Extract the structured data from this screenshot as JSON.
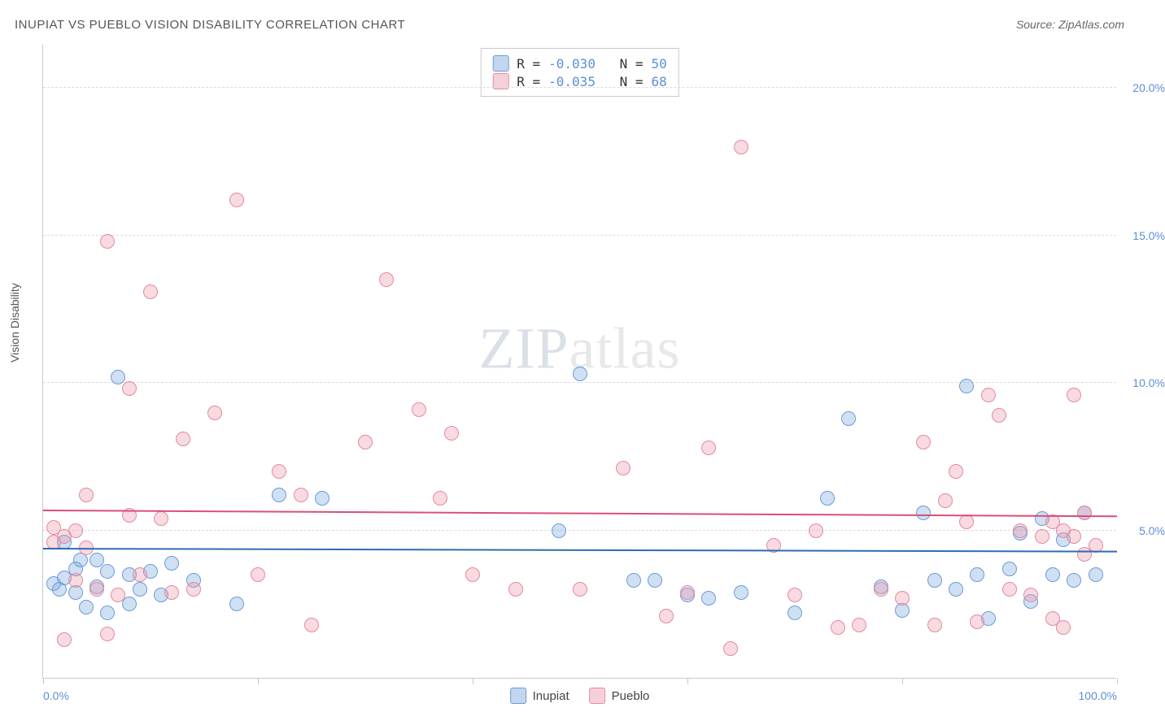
{
  "title": "INUPIAT VS PUEBLO VISION DISABILITY CORRELATION CHART",
  "source": "Source: ZipAtlas.com",
  "ylabel": "Vision Disability",
  "watermark_bold": "ZIP",
  "watermark_light": "atlas",
  "chart": {
    "type": "scatter",
    "xlim": [
      0,
      100
    ],
    "ylim": [
      0,
      21.5
    ],
    "xticks": [
      0,
      20,
      40,
      60,
      80,
      100
    ],
    "xtick_labels": {
      "0": "0.0%",
      "100": "100.0%"
    },
    "yticks": [
      5,
      10,
      15,
      20
    ],
    "ytick_labels": [
      "5.0%",
      "10.0%",
      "15.0%",
      "20.0%"
    ],
    "grid_color": "#dcdcdc",
    "background_color": "#ffffff",
    "axis_color": "#c9c9c9",
    "marker_size": 18,
    "series": [
      {
        "name": "Inupiat",
        "fill": "rgba(120,165,220,0.35)",
        "stroke": "#6a9bd8",
        "trend_color": "#2f6bb3",
        "trend": {
          "x1": 0,
          "y1": 4.35,
          "x2": 100,
          "y2": 4.25
        },
        "R": "-0.030",
        "N": "50",
        "points": [
          [
            1,
            3.2
          ],
          [
            1.5,
            3.0
          ],
          [
            2,
            3.4
          ],
          [
            2,
            4.6
          ],
          [
            3,
            2.9
          ],
          [
            3,
            3.7
          ],
          [
            3.5,
            4.0
          ],
          [
            4,
            2.4
          ],
          [
            5,
            3.1
          ],
          [
            5,
            4.0
          ],
          [
            6,
            3.6
          ],
          [
            6,
            2.2
          ],
          [
            7,
            10.2
          ],
          [
            8,
            2.5
          ],
          [
            8,
            3.5
          ],
          [
            9,
            3.0
          ],
          [
            10,
            3.6
          ],
          [
            11,
            2.8
          ],
          [
            12,
            3.9
          ],
          [
            14,
            3.3
          ],
          [
            18,
            2.5
          ],
          [
            22,
            6.2
          ],
          [
            26,
            6.1
          ],
          [
            48,
            5.0
          ],
          [
            50,
            10.3
          ],
          [
            55,
            3.3
          ],
          [
            57,
            3.3
          ],
          [
            60,
            2.8
          ],
          [
            62,
            2.7
          ],
          [
            65,
            2.9
          ],
          [
            70,
            2.2
          ],
          [
            73,
            6.1
          ],
          [
            75,
            8.8
          ],
          [
            78,
            3.1
          ],
          [
            80,
            2.3
          ],
          [
            82,
            5.6
          ],
          [
            83,
            3.3
          ],
          [
            85,
            3.0
          ],
          [
            86,
            9.9
          ],
          [
            87,
            3.5
          ],
          [
            88,
            2.0
          ],
          [
            90,
            3.7
          ],
          [
            91,
            4.9
          ],
          [
            92,
            2.6
          ],
          [
            93,
            5.4
          ],
          [
            94,
            3.5
          ],
          [
            95,
            4.7
          ],
          [
            96,
            3.3
          ],
          [
            97,
            5.6
          ],
          [
            98,
            3.5
          ]
        ]
      },
      {
        "name": "Pueblo",
        "fill": "rgba(235,150,170,0.35)",
        "stroke": "#e48aa0",
        "trend_color": "#d94f77",
        "trend": {
          "x1": 0,
          "y1": 5.65,
          "x2": 100,
          "y2": 5.45
        },
        "R": "-0.035",
        "N": "68",
        "points": [
          [
            1,
            4.6
          ],
          [
            1,
            5.1
          ],
          [
            2,
            4.8
          ],
          [
            2,
            1.3
          ],
          [
            3,
            5.0
          ],
          [
            3,
            3.3
          ],
          [
            4,
            4.4
          ],
          [
            4,
            6.2
          ],
          [
            5,
            3.0
          ],
          [
            6,
            1.5
          ],
          [
            6,
            14.8
          ],
          [
            7,
            2.8
          ],
          [
            8,
            5.5
          ],
          [
            8,
            9.8
          ],
          [
            9,
            3.5
          ],
          [
            10,
            13.1
          ],
          [
            11,
            5.4
          ],
          [
            12,
            2.9
          ],
          [
            13,
            8.1
          ],
          [
            14,
            3.0
          ],
          [
            16,
            9.0
          ],
          [
            18,
            16.2
          ],
          [
            20,
            3.5
          ],
          [
            22,
            7.0
          ],
          [
            24,
            6.2
          ],
          [
            25,
            1.8
          ],
          [
            30,
            8.0
          ],
          [
            32,
            13.5
          ],
          [
            35,
            9.1
          ],
          [
            37,
            6.1
          ],
          [
            38,
            8.3
          ],
          [
            40,
            3.5
          ],
          [
            44,
            3.0
          ],
          [
            50,
            3.0
          ],
          [
            54,
            7.1
          ],
          [
            58,
            2.1
          ],
          [
            60,
            2.9
          ],
          [
            62,
            7.8
          ],
          [
            64,
            1.0
          ],
          [
            65,
            18.0
          ],
          [
            68,
            4.5
          ],
          [
            70,
            2.8
          ],
          [
            72,
            5.0
          ],
          [
            74,
            1.7
          ],
          [
            76,
            1.8
          ],
          [
            78,
            3.0
          ],
          [
            80,
            2.7
          ],
          [
            82,
            8.0
          ],
          [
            83,
            1.8
          ],
          [
            84,
            6.0
          ],
          [
            85,
            7.0
          ],
          [
            86,
            5.3
          ],
          [
            87,
            1.9
          ],
          [
            88,
            9.6
          ],
          [
            89,
            8.9
          ],
          [
            90,
            3.0
          ],
          [
            91,
            5.0
          ],
          [
            92,
            2.8
          ],
          [
            93,
            4.8
          ],
          [
            94,
            5.3
          ],
          [
            95,
            5.0
          ],
          [
            95,
            1.7
          ],
          [
            96,
            4.8
          ],
          [
            97,
            4.2
          ],
          [
            97,
            5.6
          ],
          [
            98,
            4.5
          ],
          [
            94,
            2.0
          ],
          [
            96,
            9.6
          ]
        ]
      }
    ]
  },
  "legend": {
    "series_a": "Inupiat",
    "series_b": "Pueblo"
  }
}
